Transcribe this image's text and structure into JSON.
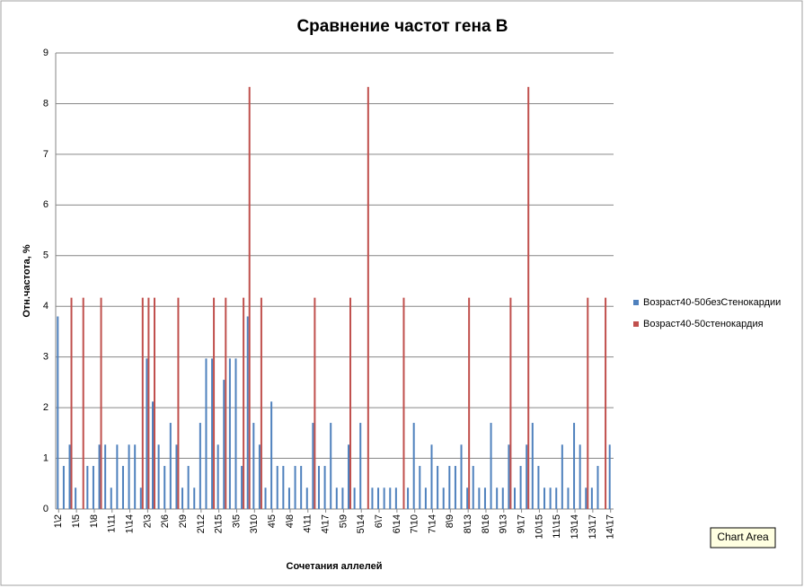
{
  "chart_data": {
    "type": "bar",
    "title": "Сравнение частот гена В",
    "y_label": "Отн.частота, %",
    "x_label": "Сочетания аллелей",
    "categories": [
      "1\\2",
      null,
      null,
      "1\\5",
      null,
      null,
      "1\\8",
      null,
      null,
      "1\\11",
      null,
      null,
      "1\\14",
      null,
      null,
      "2\\3",
      null,
      null,
      "2\\6",
      null,
      null,
      "2\\9",
      null,
      null,
      "2\\12",
      null,
      null,
      "2\\15",
      null,
      null,
      "3\\5",
      null,
      null,
      "3\\10",
      null,
      null,
      "4\\5",
      null,
      null,
      "4\\8",
      null,
      null,
      "4\\11",
      null,
      null,
      "4\\17",
      null,
      null,
      "5\\9",
      null,
      null,
      "5\\14",
      null,
      null,
      "6\\7",
      null,
      null,
      "6\\14",
      null,
      null,
      "7\\10",
      null,
      null,
      "7\\14",
      null,
      null,
      "8\\9",
      null,
      null,
      "8\\13",
      null,
      null,
      "8\\16",
      null,
      null,
      "9\\13",
      null,
      null,
      "9\\17",
      null,
      null,
      "10\\15",
      null,
      null,
      "11\\15",
      null,
      null,
      "13\\14",
      null,
      null,
      "13\\17",
      null,
      null,
      "14\\17"
    ],
    "series": [
      {
        "name": "Возраст40-50безСтенокардии",
        "color": "#4f81bd",
        "values": [
          3.8,
          0.85,
          1.27,
          0.42,
          0,
          0.85,
          0.85,
          1.27,
          1.27,
          0.42,
          1.27,
          0.85,
          1.27,
          1.27,
          0.42,
          2.97,
          2.12,
          1.27,
          0.85,
          1.7,
          1.27,
          0.42,
          0.85,
          0.42,
          1.7,
          2.97,
          2.97,
          1.27,
          2.55,
          2.97,
          2.97,
          0.85,
          3.8,
          1.7,
          1.27,
          0.42,
          2.12,
          0.85,
          0.85,
          0.42,
          0.85,
          0.85,
          0.42,
          1.7,
          0.85,
          0.85,
          1.7,
          0.42,
          0.42,
          1.27,
          0.42,
          1.7,
          0,
          0.42,
          0.42,
          0.42,
          0.42,
          0.42,
          0,
          0.42,
          1.7,
          0.85,
          0.42,
          1.27,
          0.85,
          0.42,
          0.85,
          0.85,
          1.27,
          0.42,
          0.85,
          0.42,
          0.42,
          1.7,
          0.42,
          0.42,
          1.27,
          0.42,
          0.85,
          1.27,
          1.7,
          0.85,
          0.42,
          0.42,
          0.42,
          1.27,
          0.42,
          1.7,
          1.27,
          0.42,
          0.42,
          0.85,
          0,
          1.27
        ]
      },
      {
        "name": "Возраст40-50стенокардия",
        "color": "#c0504d",
        "values": [
          0,
          0,
          4.17,
          0,
          4.17,
          0,
          0,
          4.17,
          0,
          0,
          0,
          0,
          0,
          0,
          4.17,
          4.17,
          4.17,
          0,
          0,
          0,
          4.17,
          0,
          0,
          0,
          0,
          0,
          4.17,
          0,
          4.17,
          0,
          0,
          4.17,
          8.33,
          0,
          4.17,
          0,
          0,
          0,
          0,
          0,
          0,
          0,
          0,
          4.17,
          0,
          0,
          0,
          0,
          0,
          4.17,
          0,
          0,
          8.33,
          0,
          0,
          0,
          0,
          0,
          4.17,
          0,
          0,
          0,
          0,
          0,
          0,
          0,
          0,
          0,
          0,
          4.17,
          0,
          0,
          0,
          0,
          0,
          0,
          4.17,
          0,
          0,
          8.33,
          0,
          0,
          0,
          0,
          0,
          0,
          0,
          0,
          0,
          4.17,
          0,
          0,
          4.17,
          0
        ]
      }
    ],
    "ylim": [
      0,
      9
    ],
    "yticks": [
      0,
      1,
      2,
      3,
      4,
      5,
      6,
      7,
      8,
      9
    ],
    "grid": true,
    "legend": "right"
  },
  "tooltip": "Chart Area"
}
